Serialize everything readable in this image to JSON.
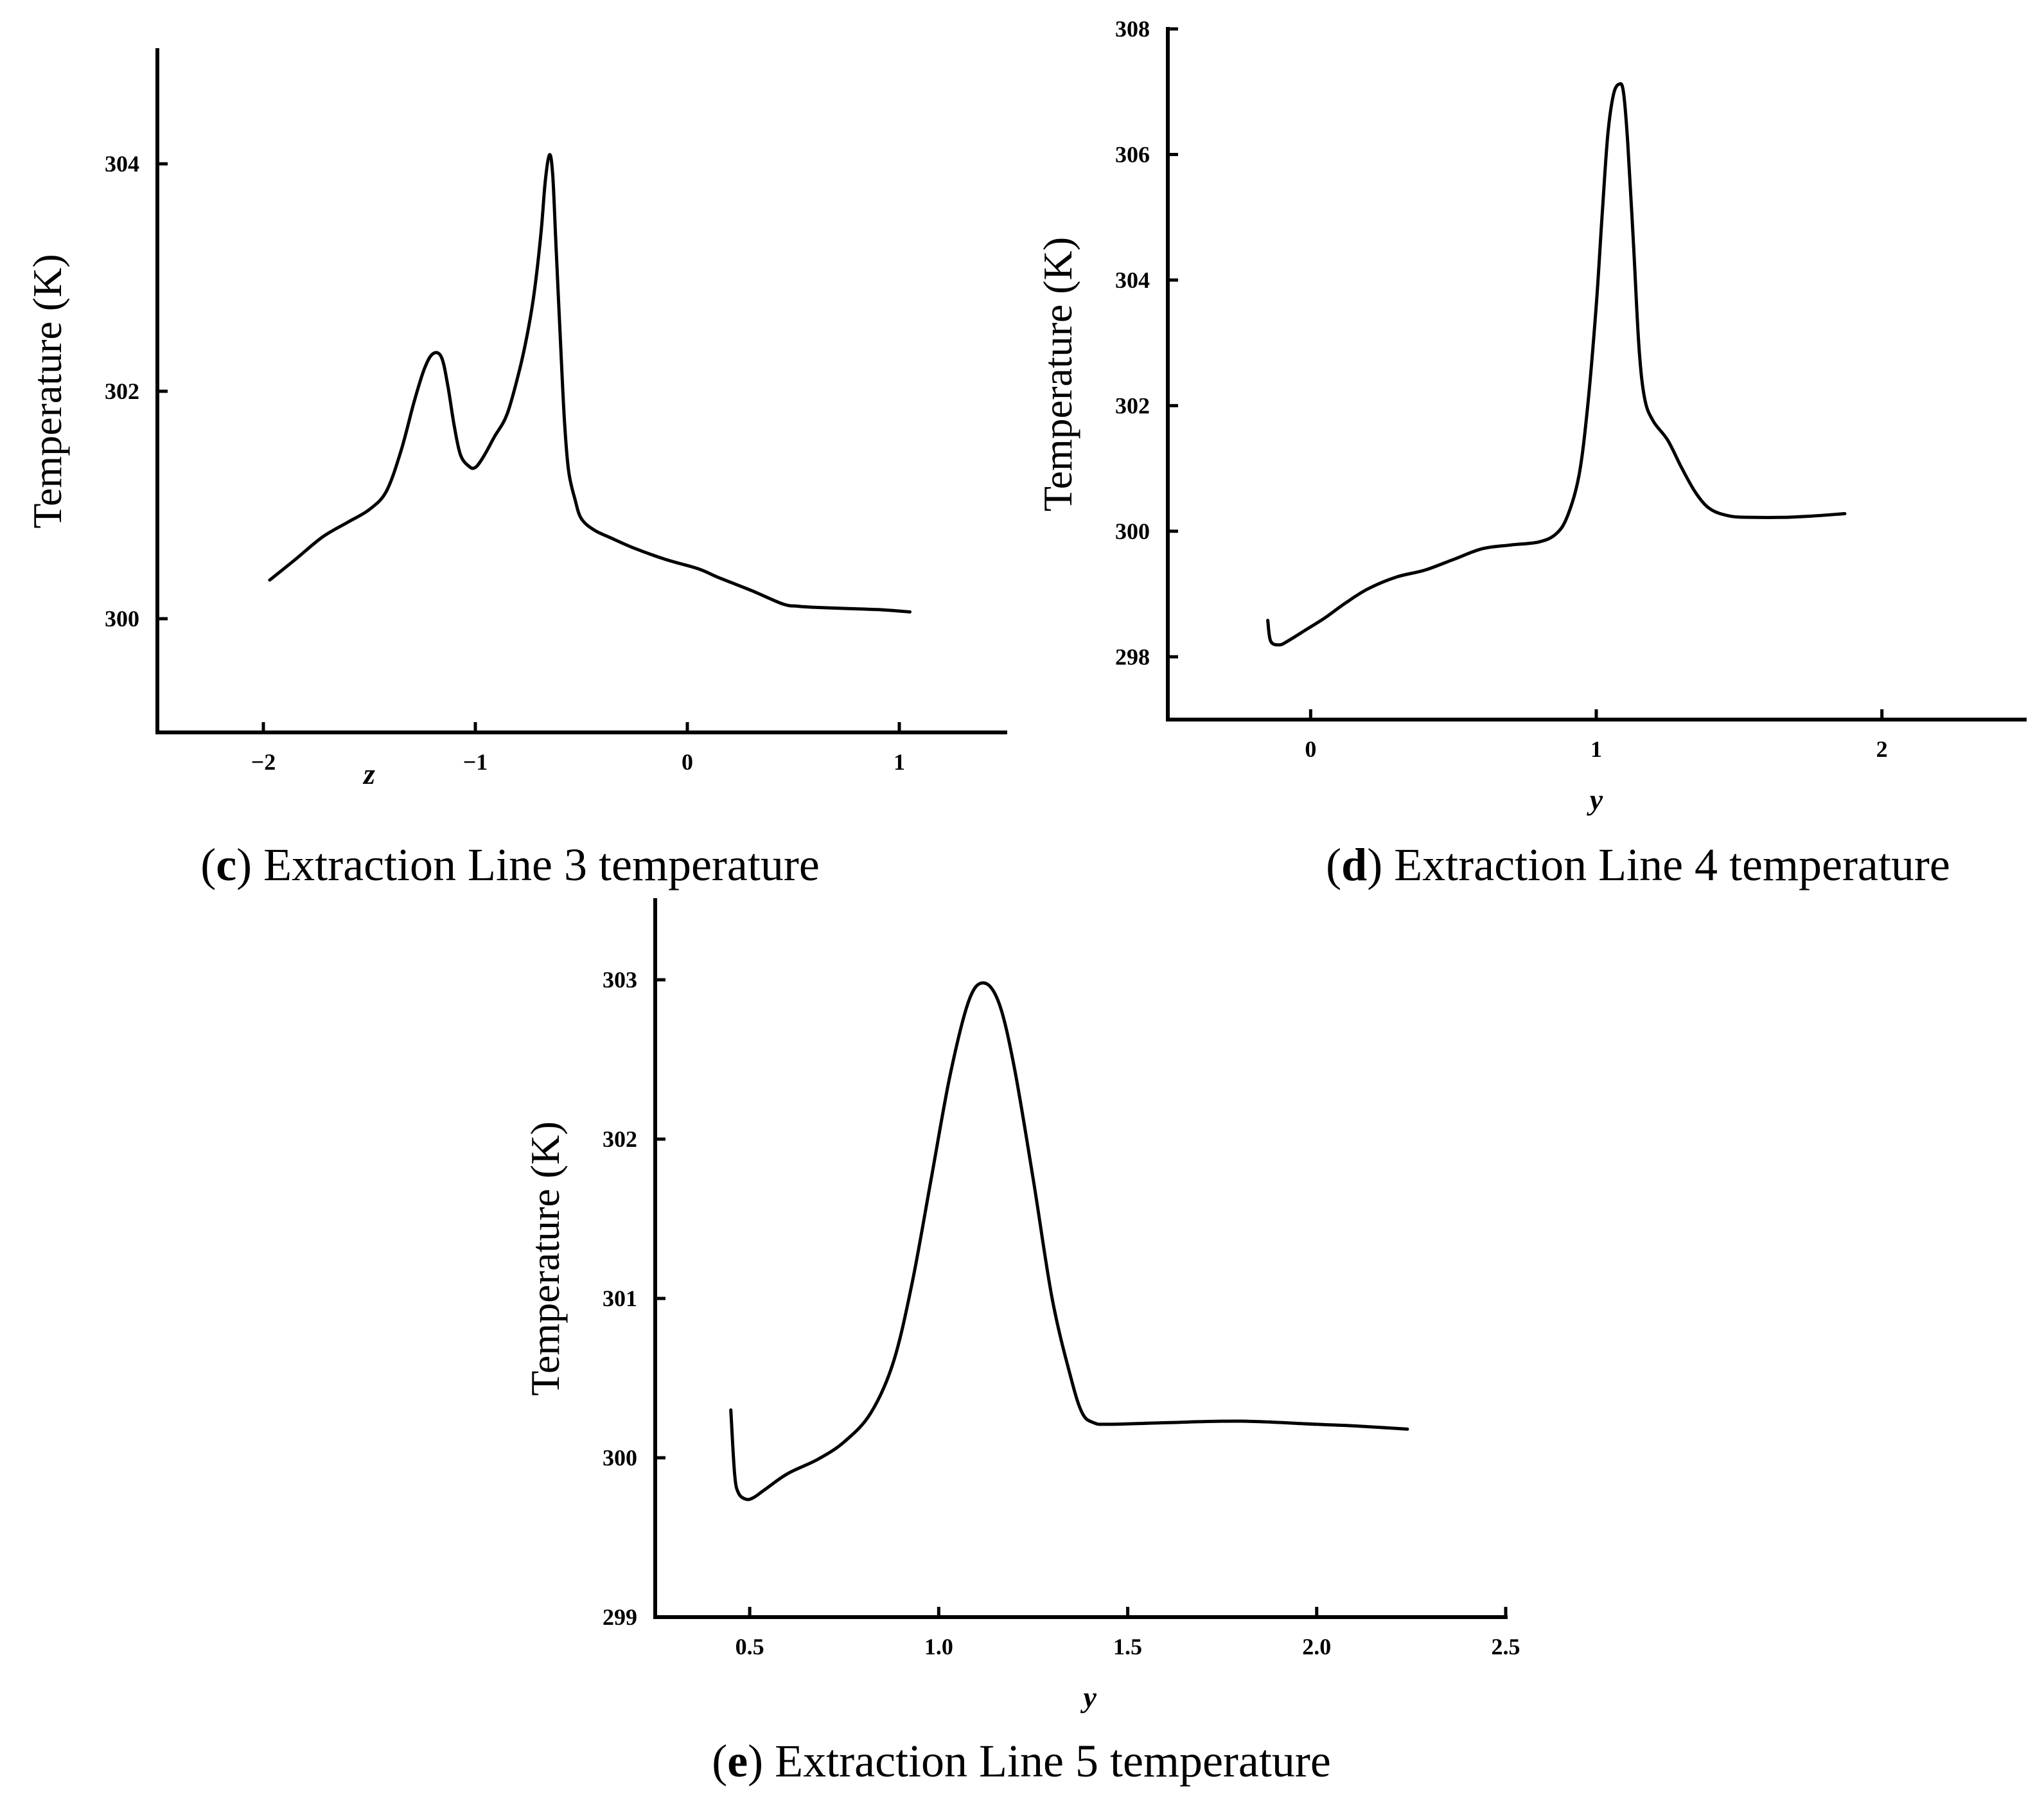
{
  "chart_data": [
    {
      "id": "c",
      "type": "line",
      "caption": {
        "letter": "c",
        "text": "Extraction Line 3 temperature"
      },
      "xlabel": "z",
      "ylabel": "Temperature (K)",
      "xlim": [
        -2.5,
        1.5
      ],
      "ylim": [
        299,
        305
      ],
      "xticks": [
        -2,
        -1,
        0,
        1
      ],
      "xtick_labels": [
        "−2",
        "−1",
        "0",
        "1"
      ],
      "yticks": [
        300,
        302,
        304
      ],
      "ytick_labels": [
        "300",
        "302",
        "304"
      ],
      "series": [
        {
          "name": "Extraction Line 3",
          "x": [
            -1.97,
            -1.85,
            -1.72,
            -1.6,
            -1.5,
            -1.42,
            -1.35,
            -1.29,
            -1.24,
            -1.2,
            -1.16,
            -1.13,
            -1.1,
            -1.07,
            -1.03,
            -1.0,
            -0.96,
            -0.91,
            -0.85,
            -0.79,
            -0.75,
            -0.72,
            -0.69,
            -0.67,
            -0.65,
            -0.635,
            -0.62,
            -0.6,
            -0.58,
            -0.56,
            -0.53,
            -0.5,
            -0.44,
            -0.36,
            -0.25,
            -0.1,
            0.05,
            0.15,
            0.3,
            0.45,
            0.52,
            0.6,
            0.75,
            0.9,
            1.05
          ],
          "y": [
            300.34,
            300.52,
            300.72,
            300.85,
            300.96,
            301.12,
            301.48,
            301.9,
            302.2,
            302.33,
            302.3,
            302.05,
            301.7,
            301.44,
            301.34,
            301.33,
            301.43,
            301.6,
            301.8,
            302.2,
            302.55,
            302.9,
            303.4,
            303.85,
            304.08,
            303.9,
            303.3,
            302.5,
            301.75,
            301.3,
            301.05,
            300.88,
            300.78,
            300.71,
            300.62,
            300.52,
            300.44,
            300.36,
            300.25,
            300.13,
            300.11,
            300.1,
            300.09,
            300.08,
            300.06
          ]
        }
      ]
    },
    {
      "id": "d",
      "type": "line",
      "caption": {
        "letter": "d",
        "text": "Extraction Line 4 temperature"
      },
      "xlabel": "y",
      "ylabel": "Temperature (K)",
      "xlim": [
        -0.5,
        2.5
      ],
      "ylim": [
        297,
        308
      ],
      "xticks": [
        0,
        1,
        2
      ],
      "xtick_labels": [
        "0",
        "1",
        "2"
      ],
      "yticks": [
        298,
        300,
        302,
        304,
        306,
        308
      ],
      "ytick_labels": [
        "298",
        "300",
        "302",
        "304",
        "306",
        "308"
      ],
      "series": [
        {
          "name": "Extraction Line 4",
          "x": [
            -0.15,
            -0.14,
            -0.11,
            -0.08,
            -0.02,
            0.05,
            0.12,
            0.2,
            0.3,
            0.4,
            0.5,
            0.6,
            0.7,
            0.8,
            0.86,
            0.9,
            0.94,
            0.97,
            1.0,
            1.02,
            1.04,
            1.06,
            1.08,
            1.095,
            1.11,
            1.13,
            1.15,
            1.17,
            1.2,
            1.25,
            1.3,
            1.35,
            1.4,
            1.47,
            1.55,
            1.65,
            1.75,
            1.87
          ],
          "y": [
            298.58,
            298.25,
            298.19,
            298.25,
            298.42,
            298.62,
            298.85,
            299.08,
            299.27,
            299.38,
            299.55,
            299.72,
            299.78,
            299.83,
            299.96,
            300.25,
            300.9,
            302.0,
            303.6,
            305.0,
            306.3,
            306.95,
            307.12,
            307.0,
            306.2,
            304.6,
            302.9,
            302.1,
            301.75,
            301.45,
            301.0,
            300.6,
            300.35,
            300.24,
            300.22,
            300.22,
            300.24,
            300.28
          ]
        }
      ]
    },
    {
      "id": "e",
      "type": "line",
      "caption": {
        "letter": "e",
        "text": "Extraction Line 5 temperature"
      },
      "xlabel": "y",
      "ylabel": "Temperature (K)",
      "xlim": [
        0.25,
        2.5
      ],
      "ylim": [
        299,
        303.5
      ],
      "xticks": [
        0.5,
        1.0,
        1.5,
        2.0,
        2.5
      ],
      "xtick_labels": [
        "0.5",
        "1.0",
        "1.5",
        "2.0",
        "2.5"
      ],
      "yticks": [
        299,
        300,
        301,
        302,
        303
      ],
      "ytick_labels": [
        "299",
        "300",
        "301",
        "302",
        "303"
      ],
      "series": [
        {
          "name": "Extraction Line 5",
          "x": [
            0.45,
            0.46,
            0.47,
            0.49,
            0.51,
            0.54,
            0.6,
            0.68,
            0.75,
            0.82,
            0.88,
            0.93,
            0.98,
            1.03,
            1.08,
            1.12,
            1.16,
            1.2,
            1.25,
            1.3,
            1.35,
            1.38,
            1.41,
            1.45,
            1.6,
            1.8,
            2.0,
            2.1,
            2.24
          ],
          "y": [
            300.3,
            299.9,
            299.78,
            299.74,
            299.75,
            299.8,
            299.9,
            299.99,
            300.1,
            300.28,
            300.6,
            301.1,
            301.75,
            302.4,
            302.87,
            302.98,
            302.85,
            302.45,
            301.75,
            301.0,
            300.5,
            300.28,
            300.22,
            300.21,
            300.22,
            300.23,
            300.21,
            300.2,
            300.18
          ]
        }
      ]
    }
  ]
}
